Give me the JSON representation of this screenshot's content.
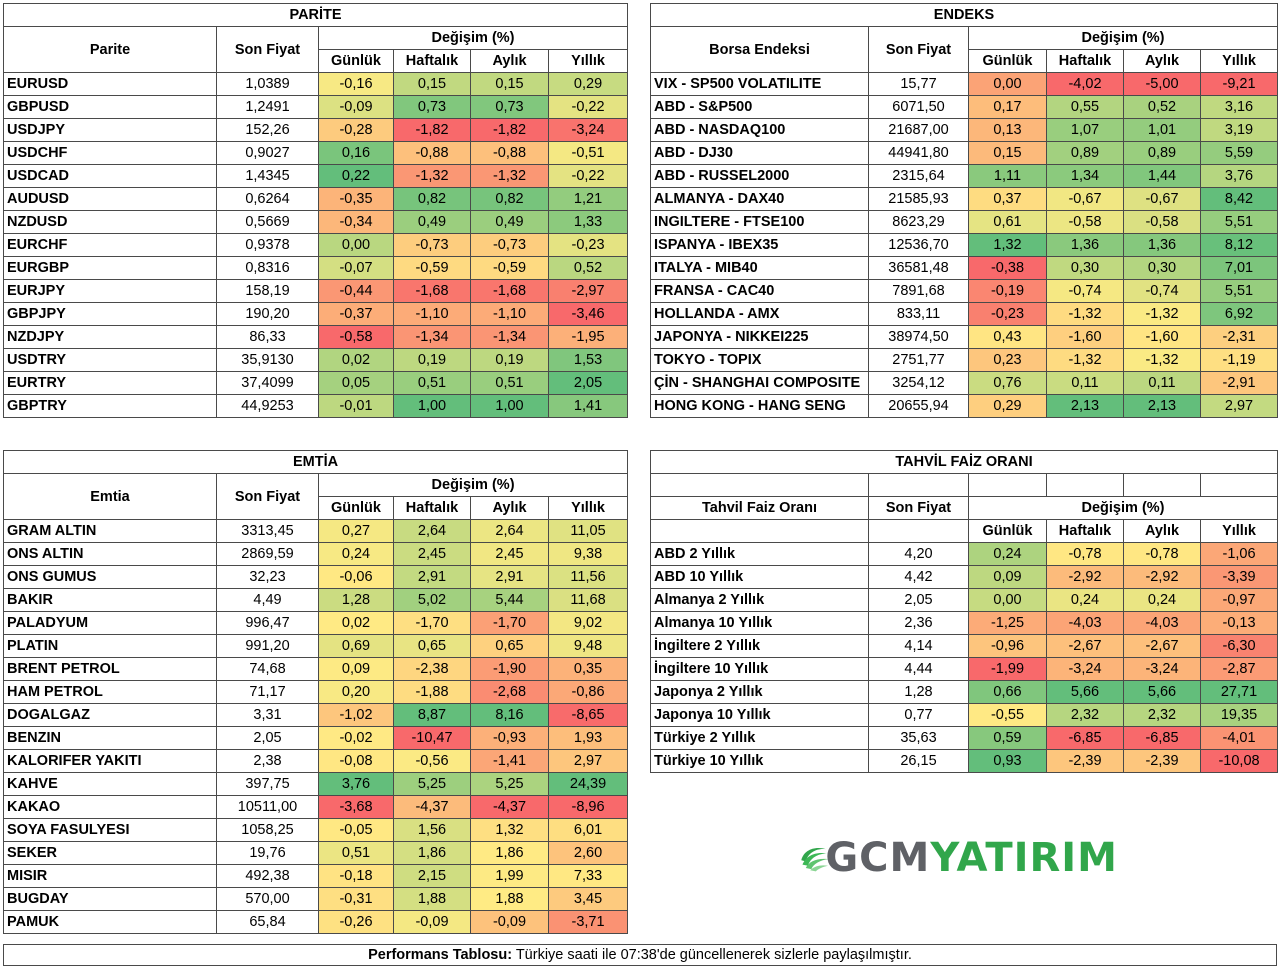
{
  "colors": {
    "strong_green": "#63be7b",
    "neutral_yellow": "#ffeb84",
    "strong_red": "#f8696b",
    "logo_gray": "#5f6166",
    "logo_green": "#31a64b"
  },
  "parite": {
    "title": "PARİTE",
    "col_name": "Parite",
    "col_price": "Son Fiyat",
    "col_change": "Değişim (%)",
    "periods": [
      "Günlük",
      "Haftalık",
      "Aylık",
      "Yıllık"
    ],
    "rows": [
      {
        "name": "EURUSD",
        "price": "1,0389",
        "vals": [
          "-0,16",
          "0,15",
          "0,15",
          "0,29"
        ]
      },
      {
        "name": "GBPUSD",
        "price": "1,2491",
        "vals": [
          "-0,09",
          "0,73",
          "0,73",
          "-0,22"
        ]
      },
      {
        "name": "USDJPY",
        "price": "152,26",
        "vals": [
          "-0,28",
          "-1,82",
          "-1,82",
          "-3,24"
        ]
      },
      {
        "name": "USDCHF",
        "price": "0,9027",
        "vals": [
          "0,16",
          "-0,88",
          "-0,88",
          "-0,51"
        ]
      },
      {
        "name": "USDCAD",
        "price": "1,4345",
        "vals": [
          "0,22",
          "-1,32",
          "-1,32",
          "-0,22"
        ]
      },
      {
        "name": "AUDUSD",
        "price": "0,6264",
        "vals": [
          "-0,35",
          "0,82",
          "0,82",
          "1,21"
        ]
      },
      {
        "name": "NZDUSD",
        "price": "0,5669",
        "vals": [
          "-0,34",
          "0,49",
          "0,49",
          "1,33"
        ]
      },
      {
        "name": "EURCHF",
        "price": "0,9378",
        "vals": [
          "0,00",
          "-0,73",
          "-0,73",
          "-0,23"
        ]
      },
      {
        "name": "EURGBP",
        "price": "0,8316",
        "vals": [
          "-0,07",
          "-0,59",
          "-0,59",
          "0,52"
        ]
      },
      {
        "name": "EURJPY",
        "price": "158,19",
        "vals": [
          "-0,44",
          "-1,68",
          "-1,68",
          "-2,97"
        ]
      },
      {
        "name": "GBPJPY",
        "price": "190,20",
        "vals": [
          "-0,37",
          "-1,10",
          "-1,10",
          "-3,46"
        ]
      },
      {
        "name": "NZDJPY",
        "price": "86,33",
        "vals": [
          "-0,58",
          "-1,34",
          "-1,34",
          "-1,95"
        ]
      },
      {
        "name": "USDTRY",
        "price": "35,9130",
        "vals": [
          "0,02",
          "0,19",
          "0,19",
          "1,53"
        ]
      },
      {
        "name": "EURTRY",
        "price": "37,4099",
        "vals": [
          "0,05",
          "0,51",
          "0,51",
          "2,05"
        ]
      },
      {
        "name": "GBPTRY",
        "price": "44,9253",
        "vals": [
          "-0,01",
          "1,00",
          "1,00",
          "1,41"
        ]
      }
    ]
  },
  "endeks": {
    "title": "ENDEKS",
    "col_name": "Borsa Endeksi",
    "col_price": "Son Fiyat",
    "col_change": "Değişim (%)",
    "periods": [
      "Günlük",
      "Haftalık",
      "Aylık",
      "Yıllık"
    ],
    "rows": [
      {
        "name": "VIX  - SP500 VOLATILITE",
        "price": "15,77",
        "vals": [
          "0,00",
          "-4,02",
          "-5,00",
          "-9,21"
        ]
      },
      {
        "name": "ABD - S&P500",
        "price": "6071,50",
        "vals": [
          "0,17",
          "0,55",
          "0,52",
          "3,16"
        ]
      },
      {
        "name": "ABD - NASDAQ100",
        "price": "21687,00",
        "vals": [
          "0,13",
          "1,07",
          "1,01",
          "3,19"
        ]
      },
      {
        "name": "ABD - DJ30",
        "price": "44941,80",
        "vals": [
          "0,15",
          "0,89",
          "0,89",
          "5,59"
        ]
      },
      {
        "name": "ABD - RUSSEL2000",
        "price": "2315,64",
        "vals": [
          "1,11",
          "1,34",
          "1,44",
          "3,76"
        ]
      },
      {
        "name": "ALMANYA - DAX40",
        "price": "21585,93",
        "vals": [
          "0,37",
          "-0,67",
          "-0,67",
          "8,42"
        ]
      },
      {
        "name": "INGILTERE - FTSE100",
        "price": "8623,29",
        "vals": [
          "0,61",
          "-0,58",
          "-0,58",
          "5,51"
        ]
      },
      {
        "name": "ISPANYA - IBEX35",
        "price": "12536,70",
        "vals": [
          "1,32",
          "1,36",
          "1,36",
          "8,12"
        ]
      },
      {
        "name": "ITALYA - MIB40",
        "price": "36581,48",
        "vals": [
          "-0,38",
          "0,30",
          "0,30",
          "7,01"
        ]
      },
      {
        "name": "FRANSA - CAC40",
        "price": "7891,68",
        "vals": [
          "-0,19",
          "-0,74",
          "-0,74",
          "5,51"
        ]
      },
      {
        "name": "HOLLANDA - AMX",
        "price": "833,11",
        "vals": [
          "-0,23",
          "-1,32",
          "-1,32",
          "6,92"
        ]
      },
      {
        "name": "JAPONYA - NIKKEI225",
        "price": "38974,50",
        "vals": [
          "0,43",
          "-1,60",
          "-1,60",
          "-2,31"
        ]
      },
      {
        "name": "TOKYO - TOPIX",
        "price": "2751,77",
        "vals": [
          "0,23",
          "-1,32",
          "-1,32",
          "-1,19"
        ]
      },
      {
        "name": "ÇİN - SHANGHAI COMPOSITE",
        "price": "3254,12",
        "vals": [
          "0,76",
          "0,11",
          "0,11",
          "-2,91"
        ]
      },
      {
        "name": "HONG KONG - HANG SENG",
        "price": "20655,94",
        "vals": [
          "0,29",
          "2,13",
          "2,13",
          "2,97"
        ]
      }
    ]
  },
  "emtia": {
    "title": "EMTİA",
    "col_name": "Emtia",
    "col_price": "Son Fiyat",
    "col_change": "Değişim (%)",
    "periods": [
      "Günlük",
      "Haftalık",
      "Aylık",
      "Yıllık"
    ],
    "rows": [
      {
        "name": "GRAM ALTIN",
        "price": "3313,45",
        "vals": [
          "0,27",
          "2,64",
          "2,64",
          "11,05"
        ]
      },
      {
        "name": "ONS ALTIN",
        "price": "2869,59",
        "vals": [
          "0,24",
          "2,45",
          "2,45",
          "9,38"
        ]
      },
      {
        "name": "ONS GUMUS",
        "price": "32,23",
        "vals": [
          "-0,06",
          "2,91",
          "2,91",
          "11,56"
        ]
      },
      {
        "name": "BAKIR",
        "price": "4,49",
        "vals": [
          "1,28",
          "5,02",
          "5,44",
          "11,68"
        ]
      },
      {
        "name": "PALADYUM",
        "price": "996,47",
        "vals": [
          "0,02",
          "-1,70",
          "-1,70",
          "9,02"
        ]
      },
      {
        "name": "PLATIN",
        "price": "991,20",
        "vals": [
          "0,69",
          "0,65",
          "0,65",
          "9,48"
        ]
      },
      {
        "name": "BRENT PETROL",
        "price": "74,68",
        "vals": [
          "0,09",
          "-2,38",
          "-1,90",
          "0,35"
        ]
      },
      {
        "name": "HAM PETROL",
        "price": "71,17",
        "vals": [
          "0,20",
          "-1,88",
          "-2,68",
          "-0,86"
        ]
      },
      {
        "name": "DOGALGAZ",
        "price": "3,31",
        "vals": [
          "-1,02",
          "8,87",
          "8,16",
          "-8,65"
        ]
      },
      {
        "name": "BENZIN",
        "price": "2,05",
        "vals": [
          "-0,02",
          "-10,47",
          "-0,93",
          "1,93"
        ]
      },
      {
        "name": "KALORIFER YAKITI",
        "price": "2,38",
        "vals": [
          "-0,08",
          "-0,56",
          "-1,41",
          "2,97"
        ]
      },
      {
        "name": "KAHVE",
        "price": "397,75",
        "vals": [
          "3,76",
          "5,25",
          "5,25",
          "24,39"
        ]
      },
      {
        "name": "KAKAO",
        "price": "10511,00",
        "vals": [
          "-3,68",
          "-4,37",
          "-4,37",
          "-8,96"
        ]
      },
      {
        "name": "SOYA FASULYESI",
        "price": "1058,25",
        "vals": [
          "-0,05",
          "1,56",
          "1,32",
          "6,01"
        ]
      },
      {
        "name": "SEKER",
        "price": "19,76",
        "vals": [
          "0,51",
          "1,86",
          "1,86",
          "2,60"
        ]
      },
      {
        "name": "MISIR",
        "price": "492,38",
        "vals": [
          "-0,18",
          "2,15",
          "1,99",
          "7,33"
        ]
      },
      {
        "name": "BUGDAY",
        "price": "570,00",
        "vals": [
          "-0,31",
          "1,88",
          "1,88",
          "3,45"
        ]
      },
      {
        "name": "PAMUK",
        "price": "65,84",
        "vals": [
          "-0,26",
          "-0,09",
          "-0,09",
          "-3,71"
        ]
      }
    ]
  },
  "tahvil": {
    "title": "TAHVİL FAİZ ORANI",
    "col_name": "Tahvil Faiz Oranı",
    "col_price": "Son Fiyat",
    "col_change": "Değişim (%)",
    "periods": [
      "Günlük",
      "Haftalık",
      "Aylık",
      "Yıllık"
    ],
    "rows": [
      {
        "name": "ABD 2 Yıllık",
        "price": "4,20",
        "vals": [
          "0,24",
          "-0,78",
          "-0,78",
          "-1,06"
        ]
      },
      {
        "name": "ABD 10 Yıllık",
        "price": "4,42",
        "vals": [
          "0,09",
          "-2,92",
          "-2,92",
          "-3,39"
        ]
      },
      {
        "name": "Almanya 2 Yıllık",
        "price": "2,05",
        "vals": [
          "0,00",
          "0,24",
          "0,24",
          "-0,97"
        ]
      },
      {
        "name": "Almanya 10 Yıllık",
        "price": "2,36",
        "vals": [
          "-1,25",
          "-4,03",
          "-4,03",
          "-0,13"
        ]
      },
      {
        "name": "İngiltere 2 Yıllık",
        "price": "4,14",
        "vals": [
          "-0,96",
          "-2,67",
          "-2,67",
          "-6,30"
        ]
      },
      {
        "name": "İngiltere 10 Yıllık",
        "price": "4,44",
        "vals": [
          "-1,99",
          "-3,24",
          "-3,24",
          "-2,87"
        ]
      },
      {
        "name": "Japonya 2 Yıllık",
        "price": "1,28",
        "vals": [
          "0,66",
          "5,66",
          "5,66",
          "27,71"
        ]
      },
      {
        "name": "Japonya 10 Yıllık",
        "price": "0,77",
        "vals": [
          "-0,55",
          "2,32",
          "2,32",
          "19,35"
        ]
      },
      {
        "name": "Türkiye 2 Yıllık",
        "price": "35,63",
        "vals": [
          "0,59",
          "-6,85",
          "-6,85",
          "-4,01"
        ]
      },
      {
        "name": "Türkiye 10 Yıllık",
        "price": "26,15",
        "vals": [
          "0,93",
          "-2,39",
          "-2,39",
          "-10,08"
        ]
      }
    ]
  },
  "logo": {
    "brand_gray": "GCM",
    "brand_green": "YATIRIM",
    "icon": "globe-swoosh-icon"
  },
  "footer": {
    "label": "Performans Tablosu:",
    "text": " Türkiye saati ile 07:38'de güncellenerek sizlerle paylaşılmıştır."
  }
}
